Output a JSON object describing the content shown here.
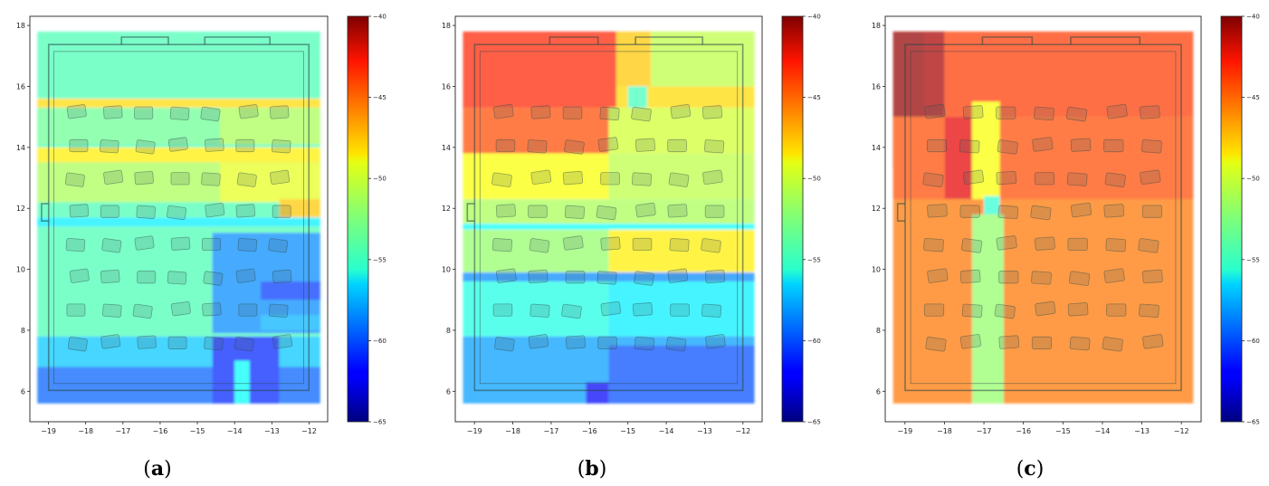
{
  "chart_data": [
    {
      "panel": "(a)",
      "caption_letter": "a",
      "type": "heatmap",
      "title": "",
      "xlabel": "",
      "ylabel": "",
      "xlim": [
        -19.5,
        -11.5
      ],
      "ylim": [
        5,
        18.3
      ],
      "xticks": [
        -19,
        -18,
        -17,
        -16,
        -15,
        -14,
        -13,
        -12
      ],
      "yticks": [
        6,
        8,
        10,
        12,
        14,
        16,
        18
      ],
      "colorbar": {
        "min": -65,
        "max": -40,
        "ticks": [
          -40,
          -45,
          -50,
          -55,
          -60,
          -65
        ],
        "colormap": "jet"
      },
      "extent": [
        -19.3,
        -11.7,
        5.6,
        17.8
      ],
      "regions": [
        {
          "x": [
            -19.3,
            -11.7
          ],
          "y": [
            5.6,
            17.8
          ],
          "v": -53.8
        },
        {
          "x": [
            -19.3,
            -11.7
          ],
          "y": [
            15.3,
            15.6
          ],
          "v": -48.5
        },
        {
          "x": [
            -19.3,
            -14.4
          ],
          "y": [
            14.1,
            15.3
          ],
          "v": -53.0
        },
        {
          "x": [
            -14.4,
            -11.7
          ],
          "y": [
            14.1,
            15.3
          ],
          "v": -51.5
        },
        {
          "x": [
            -19.3,
            -11.7
          ],
          "y": [
            13.5,
            14.0
          ],
          "v": -49.0
        },
        {
          "x": [
            -19.3,
            -14.4
          ],
          "y": [
            12.2,
            13.5
          ],
          "v": -51.5
        },
        {
          "x": [
            -14.4,
            -11.7
          ],
          "y": [
            12.2,
            13.5
          ],
          "v": -50.0
        },
        {
          "x": [
            -12.8,
            -11.7
          ],
          "y": [
            11.7,
            12.3
          ],
          "v": -48.0
        },
        {
          "x": [
            -19.3,
            -11.7
          ],
          "y": [
            11.4,
            11.7
          ],
          "v": -56.0
        },
        {
          "x": [
            -14.6,
            -11.7
          ],
          "y": [
            7.9,
            11.2
          ],
          "v": -58.5
        },
        {
          "x": [
            -13.3,
            -11.7
          ],
          "y": [
            9.0,
            9.6
          ],
          "v": -60.5
        },
        {
          "x": [
            -13.3,
            -11.7
          ],
          "y": [
            8.0,
            8.5
          ],
          "v": -57.5
        },
        {
          "x": [
            -19.3,
            -11.7
          ],
          "y": [
            6.8,
            7.8
          ],
          "v": -57.0
        },
        {
          "x": [
            -19.3,
            -11.7
          ],
          "y": [
            5.6,
            6.8
          ],
          "v": -59.5
        },
        {
          "x": [
            -14.6,
            -12.8
          ],
          "y": [
            5.6,
            7.8
          ],
          "v": -61.0
        },
        {
          "x": [
            -14.0,
            -13.6
          ],
          "y": [
            5.6,
            7.0
          ],
          "v": -55.5
        }
      ]
    },
    {
      "panel": "(b)",
      "caption_letter": "b",
      "type": "heatmap",
      "title": "",
      "xlabel": "",
      "ylabel": "",
      "xlim": [
        -19.5,
        -11.5
      ],
      "ylim": [
        5,
        18.3
      ],
      "xticks": [
        -19,
        -18,
        -17,
        -16,
        -15,
        -14,
        -13,
        -12
      ],
      "yticks": [
        6,
        8,
        10,
        12,
        14,
        16,
        18
      ],
      "colorbar": {
        "min": -65,
        "max": -40,
        "ticks": [
          -40,
          -45,
          -50,
          -55,
          -60,
          -65
        ],
        "colormap": "jet"
      },
      "extent": [
        -19.3,
        -11.7,
        5.6,
        17.8
      ],
      "regions": [
        {
          "x": [
            -19.3,
            -15.3
          ],
          "y": [
            15.3,
            17.8
          ],
          "v": -44.0
        },
        {
          "x": [
            -15.3,
            -14.4
          ],
          "y": [
            16.0,
            17.8
          ],
          "v": -48.0
        },
        {
          "x": [
            -14.4,
            -11.7
          ],
          "y": [
            16.0,
            17.8
          ],
          "v": -51.0
        },
        {
          "x": [
            -15.3,
            -11.7
          ],
          "y": [
            15.3,
            16.0
          ],
          "v": -48.5
        },
        {
          "x": [
            -15.0,
            -14.5
          ],
          "y": [
            15.3,
            16.0
          ],
          "v": -54.0
        },
        {
          "x": [
            -19.3,
            -15.5
          ],
          "y": [
            13.8,
            15.3
          ],
          "v": -45.0
        },
        {
          "x": [
            -15.5,
            -11.7
          ],
          "y": [
            13.8,
            15.3
          ],
          "v": -50.5
        },
        {
          "x": [
            -19.3,
            -15.5
          ],
          "y": [
            12.3,
            13.8
          ],
          "v": -49.5
        },
        {
          "x": [
            -15.5,
            -11.7
          ],
          "y": [
            12.3,
            13.8
          ],
          "v": -51.0
        },
        {
          "x": [
            -19.3,
            -11.7
          ],
          "y": [
            11.5,
            12.3
          ],
          "v": -51.5
        },
        {
          "x": [
            -19.3,
            -11.7
          ],
          "y": [
            11.3,
            11.5
          ],
          "v": -55.5
        },
        {
          "x": [
            -19.3,
            -15.5
          ],
          "y": [
            9.9,
            11.3
          ],
          "v": -52.0
        },
        {
          "x": [
            -15.5,
            -11.7
          ],
          "y": [
            9.9,
            11.3
          ],
          "v": -49.0
        },
        {
          "x": [
            -19.3,
            -11.7
          ],
          "y": [
            9.6,
            9.9
          ],
          "v": -58.5
        },
        {
          "x": [
            -19.3,
            -15.5
          ],
          "y": [
            7.8,
            9.6
          ],
          "v": -55.0
        },
        {
          "x": [
            -15.5,
            -11.7
          ],
          "y": [
            7.8,
            9.6
          ],
          "v": -56.0
        },
        {
          "x": [
            -19.3,
            -11.7
          ],
          "y": [
            5.6,
            7.8
          ],
          "v": -58.0
        },
        {
          "x": [
            -15.5,
            -11.7
          ],
          "y": [
            5.6,
            7.5
          ],
          "v": -60.0
        },
        {
          "x": [
            -16.1,
            -15.5
          ],
          "y": [
            5.6,
            6.3
          ],
          "v": -62.0
        }
      ]
    },
    {
      "panel": "(c)",
      "caption_letter": "c",
      "type": "heatmap",
      "title": "",
      "xlabel": "",
      "ylabel": "",
      "xlim": [
        -19.5,
        -11.5
      ],
      "ylim": [
        5,
        18.3
      ],
      "xticks": [
        -19,
        -18,
        -17,
        -16,
        -15,
        -14,
        -13,
        -12
      ],
      "yticks": [
        6,
        8,
        10,
        12,
        14,
        16,
        18
      ],
      "colorbar": {
        "min": -65,
        "max": -40,
        "ticks": [
          -40,
          -45,
          -50,
          -55,
          -60,
          -65
        ],
        "colormap": "jet"
      },
      "extent": [
        -19.3,
        -11.7,
        5.6,
        17.8
      ],
      "regions": [
        {
          "x": [
            -19.3,
            -11.7
          ],
          "y": [
            5.6,
            17.8
          ],
          "v": -46.0
        },
        {
          "x": [
            -19.3,
            -11.7
          ],
          "y": [
            15.0,
            17.8
          ],
          "v": -44.5
        },
        {
          "x": [
            -18.5,
            -18.0
          ],
          "y": [
            15.0,
            17.8
          ],
          "v": -41.0
        },
        {
          "x": [
            -19.3,
            -18.5
          ],
          "y": [
            13.3,
            17.8
          ],
          "v": -40.5
        },
        {
          "x": [
            -19.3,
            -11.7
          ],
          "y": [
            12.3,
            15.0
          ],
          "v": -45.0
        },
        {
          "x": [
            -18.0,
            -17.3
          ],
          "y": [
            12.3,
            15.0
          ],
          "v": -42.5
        },
        {
          "x": [
            -17.3,
            -16.6
          ],
          "y": [
            12.3,
            15.5
          ],
          "v": -49.5
        },
        {
          "x": [
            -17.0,
            -16.6
          ],
          "y": [
            11.8,
            12.4
          ],
          "v": -54.5
        },
        {
          "x": [
            -17.3,
            -16.5
          ],
          "y": [
            5.6,
            11.8
          ],
          "v": -52.0
        }
      ]
    }
  ]
}
